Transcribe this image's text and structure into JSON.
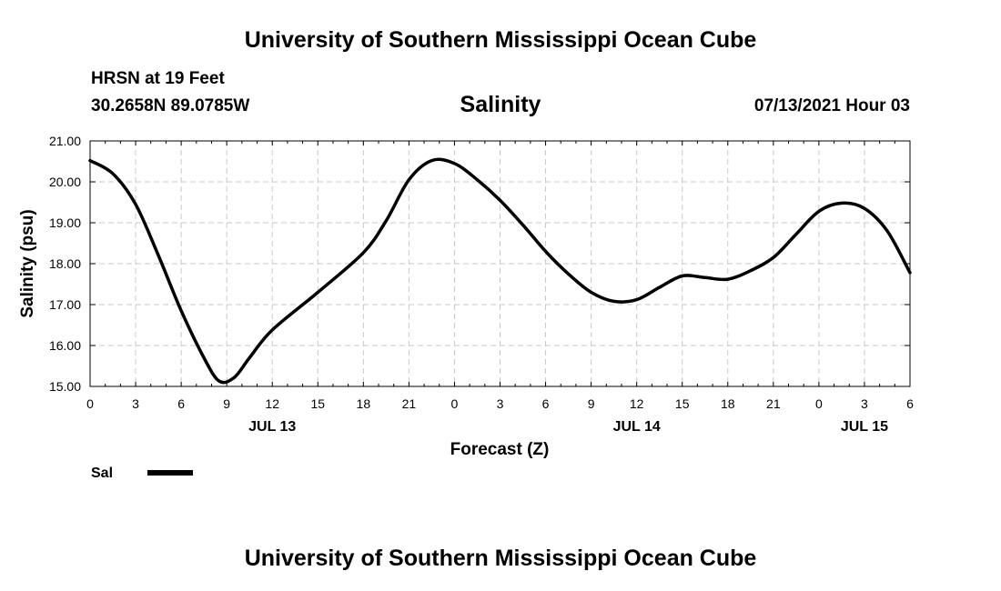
{
  "header": {
    "title": "University of Southern Mississippi Ocean Cube",
    "station": "HRSN at 19 Feet",
    "coordinates": "30.2658N  89.0785W",
    "timestamp": "07/13/2021 Hour 03"
  },
  "footer": {
    "title": "University of Southern Mississippi Ocean Cube"
  },
  "colors": {
    "line": "#000000",
    "grid": "#c8c8c8"
  },
  "chart_data": {
    "type": "line",
    "title": "Salinity",
    "xlabel": "Forecast (Z)",
    "ylabel": "Salinity (psu)",
    "xlim": [
      0,
      54
    ],
    "ylim": [
      15.0,
      21.0
    ],
    "grid": true,
    "x_ticks": [
      0,
      3,
      6,
      9,
      12,
      15,
      18,
      21,
      24,
      27,
      30,
      33,
      36,
      39,
      42,
      45,
      48,
      51,
      54
    ],
    "x_tick_labels": [
      "0",
      "3",
      "6",
      "9",
      "12",
      "15",
      "18",
      "21",
      "0",
      "3",
      "6",
      "9",
      "12",
      "15",
      "18",
      "21",
      "0",
      "3",
      "6"
    ],
    "day_labels": [
      {
        "label": "JUL 13",
        "x": 12
      },
      {
        "label": "JUL 14",
        "x": 36
      },
      {
        "label": "JUL 15",
        "x": 51
      }
    ],
    "y_ticks": [
      15.0,
      16.0,
      17.0,
      18.0,
      19.0,
      20.0,
      21.0
    ],
    "y_tick_labels": [
      "15.00",
      "16.00",
      "17.00",
      "18.00",
      "19.00",
      "20.00",
      "21.00"
    ],
    "legend": {
      "position": "bottom-left",
      "entries": [
        "Sal"
      ]
    },
    "series": [
      {
        "name": "Sal",
        "x": [
          0,
          1.5,
          3,
          4.5,
          6,
          7.5,
          8.5,
          9.5,
          10.5,
          12,
          15,
          18,
          19.5,
          21,
          22.5,
          24,
          25.5,
          27,
          28.5,
          30,
          31.5,
          33,
          34.5,
          36,
          37.5,
          39,
          40.5,
          42,
          43.5,
          45,
          46.5,
          48,
          49.5,
          51,
          52.5,
          54
        ],
        "values": [
          20.52,
          20.2,
          19.45,
          18.2,
          16.85,
          15.7,
          15.13,
          15.22,
          15.7,
          16.38,
          17.3,
          18.27,
          19.05,
          20.05,
          20.52,
          20.45,
          20.05,
          19.55,
          18.95,
          18.3,
          17.75,
          17.3,
          17.08,
          17.12,
          17.42,
          17.7,
          17.66,
          17.62,
          17.83,
          18.15,
          18.72,
          19.28,
          19.48,
          19.35,
          18.8,
          17.78
        ]
      }
    ]
  }
}
